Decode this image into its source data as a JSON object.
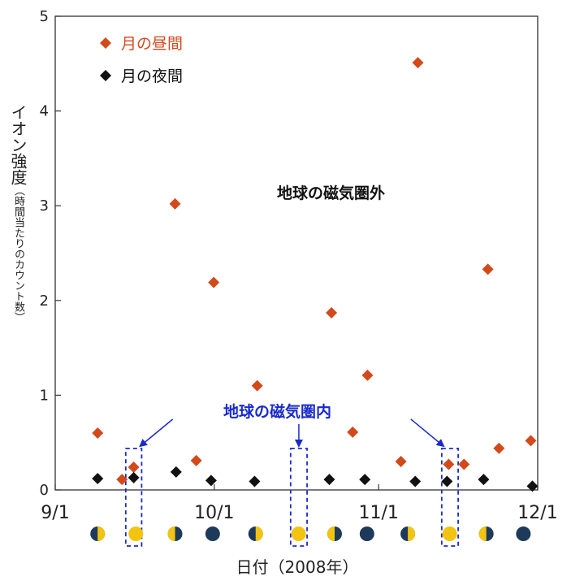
{
  "chart_data": {
    "type": "scatter",
    "xlabel": "日付（2008年）",
    "ylabel": "イオン強度",
    "ylabel_note": "（時間当たりのカウント数）",
    "x_ticks": [
      {
        "label": "9/1",
        "day": 0
      },
      {
        "label": "10/1",
        "day": 30
      },
      {
        "label": "11/1",
        "day": 61
      },
      {
        "label": "12/1",
        "day": 91
      }
    ],
    "xlim": [
      0,
      91
    ],
    "ylim": [
      0,
      5
    ],
    "y_ticks": [
      0,
      1,
      2,
      3,
      4,
      5
    ],
    "legend_position": "top-left",
    "series": [
      {
        "name": "月の昼間",
        "color": "#d24a1c",
        "marker": "diamond",
        "points": [
          {
            "day": 8,
            "y": 0.6
          },
          {
            "day": 12.6,
            "y": 0.11
          },
          {
            "day": 14.8,
            "y": 0.24
          },
          {
            "day": 22.6,
            "y": 3.02
          },
          {
            "day": 26.6,
            "y": 0.31
          },
          {
            "day": 29.9,
            "y": 2.19
          },
          {
            "day": 38.1,
            "y": 1.1
          },
          {
            "day": 52.1,
            "y": 1.87
          },
          {
            "day": 56.1,
            "y": 0.61
          },
          {
            "day": 58.9,
            "y": 1.21
          },
          {
            "day": 65.2,
            "y": 0.3
          },
          {
            "day": 68.4,
            "y": 4.51
          },
          {
            "day": 74.2,
            "y": 0.27
          },
          {
            "day": 77.1,
            "y": 0.27
          },
          {
            "day": 81.6,
            "y": 2.33
          },
          {
            "day": 83.7,
            "y": 0.44
          },
          {
            "day": 89.7,
            "y": 0.52
          }
        ]
      },
      {
        "name": "月の夜間",
        "color": "#111111",
        "marker": "diamond",
        "points": [
          {
            "day": 8,
            "y": 0.12
          },
          {
            "day": 14.8,
            "y": 0.13
          },
          {
            "day": 22.8,
            "y": 0.19
          },
          {
            "day": 29.4,
            "y": 0.1
          },
          {
            "day": 37.6,
            "y": 0.09
          },
          {
            "day": 51.7,
            "y": 0.11
          },
          {
            "day": 58.4,
            "y": 0.11
          },
          {
            "day": 67.9,
            "y": 0.09
          },
          {
            "day": 73.9,
            "y": 0.09
          },
          {
            "day": 80.8,
            "y": 0.11
          },
          {
            "day": 90,
            "y": 0.04
          }
        ]
      }
    ],
    "annotations": [
      {
        "text": "地球の磁気圏外",
        "color": "#111111"
      },
      {
        "text": "地球の磁気圏内",
        "color": "#1a2acc"
      }
    ],
    "magnetosphere_windows": [
      {
        "from": 13.3,
        "to": 16.3
      },
      {
        "from": 44.4,
        "to": 47.5
      },
      {
        "from": 72.9,
        "to": 76.0
      }
    ],
    "moon_phases": [
      {
        "day": 8,
        "phase": "first-quarter"
      },
      {
        "day": 15.2,
        "phase": "full"
      },
      {
        "day": 22.6,
        "phase": "last-quarter"
      },
      {
        "day": 29.7,
        "phase": "new"
      },
      {
        "day": 37.8,
        "phase": "first-quarter"
      },
      {
        "day": 45.9,
        "phase": "full"
      },
      {
        "day": 52.7,
        "phase": "last-quarter"
      },
      {
        "day": 58.8,
        "phase": "new"
      },
      {
        "day": 66.5,
        "phase": "first-quarter"
      },
      {
        "day": 74.4,
        "phase": "full"
      },
      {
        "day": 81.3,
        "phase": "last-quarter"
      },
      {
        "day": 88.3,
        "phase": "new"
      }
    ],
    "moon_colors": {
      "dark": "#1e3a5a",
      "light": "#f2c40f"
    }
  }
}
